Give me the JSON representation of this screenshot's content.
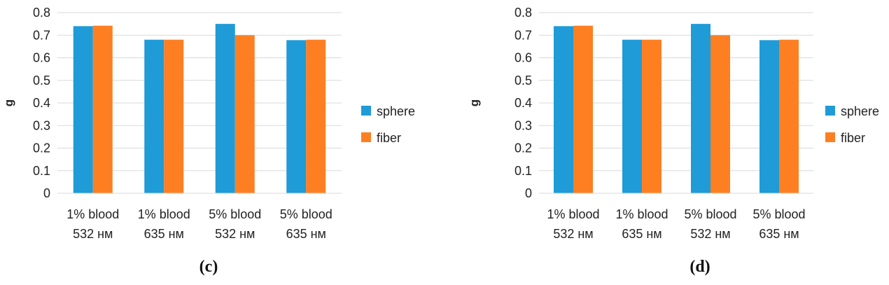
{
  "chart_data": [
    {
      "type": "bar",
      "panel_label": "(c)",
      "categories": [
        [
          "1% blood",
          "532 нм"
        ],
        [
          "1% blood",
          "635 нм"
        ],
        [
          "5% blood",
          "532 нм"
        ],
        [
          "5% blood",
          "635 нм"
        ]
      ],
      "series": [
        {
          "name": "sphere",
          "color": "#1f9bd7",
          "values": [
            0.74,
            0.68,
            0.75,
            0.678
          ]
        },
        {
          "name": "fiber",
          "color": "#fd7f22",
          "values": [
            0.742,
            0.68,
            0.7,
            0.68
          ]
        }
      ],
      "ylabel": "g",
      "ylim": [
        0,
        0.8
      ],
      "yticks": [
        "0",
        "0.1",
        "0.2",
        "0.3",
        "0.4",
        "0.5",
        "0.6",
        "0.7",
        "0.8"
      ],
      "grid": true,
      "legend_position": "right"
    },
    {
      "type": "bar",
      "panel_label": "(d)",
      "categories": [
        [
          "1% blood",
          "532 нм"
        ],
        [
          "1% blood",
          "635 нм"
        ],
        [
          "5% blood",
          "532 нм"
        ],
        [
          "5% blood",
          "635 нм"
        ]
      ],
      "series": [
        {
          "name": "sphere",
          "color": "#1f9bd7",
          "values": [
            0.74,
            0.68,
            0.75,
            0.678
          ]
        },
        {
          "name": "fiber",
          "color": "#fd7f22",
          "values": [
            0.742,
            0.68,
            0.7,
            0.68
          ]
        }
      ],
      "ylabel": "g",
      "ylim": [
        0,
        0.8
      ],
      "yticks": [
        "0",
        "0.1",
        "0.2",
        "0.3",
        "0.4",
        "0.5",
        "0.6",
        "0.7",
        "0.8"
      ],
      "grid": true,
      "legend_position": "right"
    }
  ]
}
